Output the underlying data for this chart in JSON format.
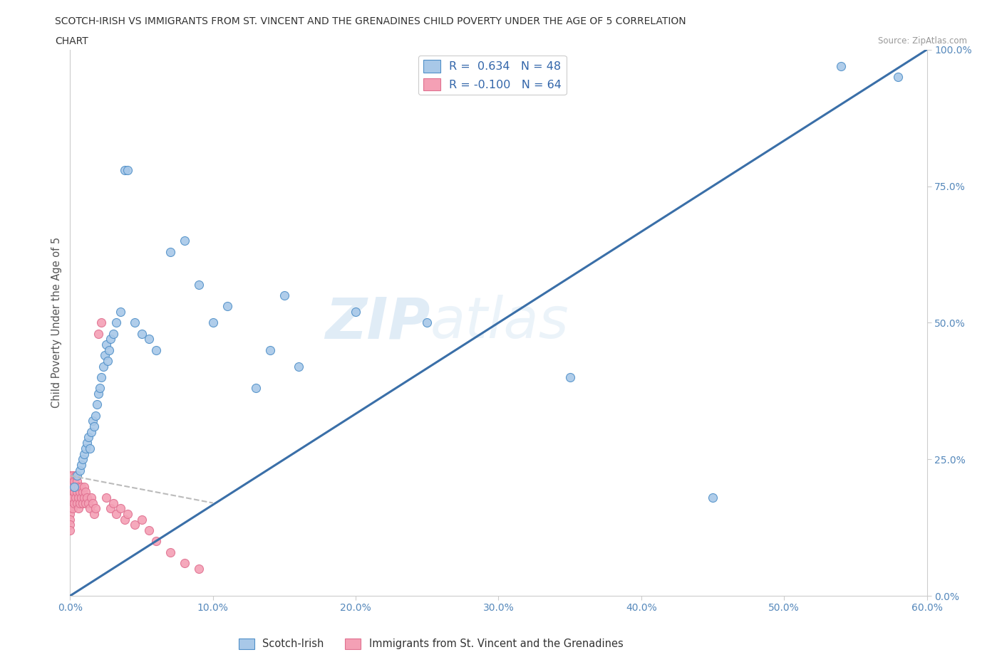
{
  "title_line1": "SCOTCH-IRISH VS IMMIGRANTS FROM ST. VINCENT AND THE GRENADINES CHILD POVERTY UNDER THE AGE OF 5 CORRELATION",
  "title_line2": "CHART",
  "source_text": "Source: ZipAtlas.com",
  "ylabel": "Child Poverty Under the Age of 5",
  "watermark_part1": "ZIP",
  "watermark_part2": "atlas",
  "legend_label1": "Scotch-Irish",
  "legend_label2": "Immigrants from St. Vincent and the Grenadines",
  "R1": 0.634,
  "N1": 48,
  "R2": -0.1,
  "N2": 64,
  "color_blue": "#a8c8e8",
  "color_pink": "#f4a0b5",
  "trend_color_blue": "#3a6fa8",
  "xlim": [
    0,
    0.6
  ],
  "ylim": [
    0,
    1.0
  ],
  "xticks": [
    0.0,
    0.1,
    0.2,
    0.3,
    0.4,
    0.5,
    0.6
  ],
  "xtick_labels": [
    "0.0%",
    "10.0%",
    "20.0%",
    "30.0%",
    "40.0%",
    "50.0%",
    "60.0%"
  ],
  "ytick_labels": [
    "0.0%",
    "25.0%",
    "50.0%",
    "75.0%",
    "100.0%"
  ],
  "yticks": [
    0.0,
    0.25,
    0.5,
    0.75,
    1.0
  ],
  "blue_x": [
    0.003,
    0.005,
    0.007,
    0.008,
    0.009,
    0.01,
    0.011,
    0.012,
    0.013,
    0.014,
    0.015,
    0.016,
    0.017,
    0.018,
    0.019,
    0.02,
    0.021,
    0.022,
    0.023,
    0.024,
    0.025,
    0.026,
    0.027,
    0.028,
    0.03,
    0.032,
    0.035,
    0.038,
    0.04,
    0.045,
    0.05,
    0.055,
    0.06,
    0.07,
    0.08,
    0.09,
    0.1,
    0.11,
    0.13,
    0.14,
    0.15,
    0.16,
    0.2,
    0.25,
    0.35,
    0.45,
    0.54,
    0.58
  ],
  "blue_y": [
    0.2,
    0.22,
    0.23,
    0.24,
    0.25,
    0.26,
    0.27,
    0.28,
    0.29,
    0.27,
    0.3,
    0.32,
    0.31,
    0.33,
    0.35,
    0.37,
    0.38,
    0.4,
    0.42,
    0.44,
    0.46,
    0.43,
    0.45,
    0.47,
    0.48,
    0.5,
    0.52,
    0.78,
    0.78,
    0.5,
    0.48,
    0.47,
    0.45,
    0.63,
    0.65,
    0.57,
    0.5,
    0.53,
    0.38,
    0.45,
    0.55,
    0.42,
    0.52,
    0.5,
    0.4,
    0.18,
    0.97,
    0.95
  ],
  "pink_x": [
    0.0,
    0.0,
    0.0,
    0.0,
    0.0,
    0.0,
    0.0,
    0.0,
    0.0,
    0.0,
    0.001,
    0.001,
    0.001,
    0.001,
    0.001,
    0.002,
    0.002,
    0.002,
    0.002,
    0.003,
    0.003,
    0.003,
    0.004,
    0.004,
    0.004,
    0.005,
    0.005,
    0.005,
    0.006,
    0.006,
    0.006,
    0.007,
    0.007,
    0.008,
    0.008,
    0.009,
    0.009,
    0.01,
    0.01,
    0.011,
    0.011,
    0.012,
    0.013,
    0.014,
    0.015,
    0.016,
    0.017,
    0.018,
    0.02,
    0.022,
    0.025,
    0.028,
    0.03,
    0.032,
    0.035,
    0.038,
    0.04,
    0.045,
    0.05,
    0.055,
    0.06,
    0.07,
    0.08,
    0.09
  ],
  "pink_y": [
    0.2,
    0.19,
    0.18,
    0.17,
    0.16,
    0.15,
    0.14,
    0.13,
    0.12,
    0.22,
    0.21,
    0.2,
    0.19,
    0.18,
    0.17,
    0.22,
    0.2,
    0.18,
    0.16,
    0.21,
    0.19,
    0.17,
    0.22,
    0.2,
    0.18,
    0.21,
    0.19,
    0.17,
    0.2,
    0.18,
    0.16,
    0.19,
    0.17,
    0.2,
    0.18,
    0.19,
    0.17,
    0.2,
    0.18,
    0.19,
    0.17,
    0.18,
    0.17,
    0.16,
    0.18,
    0.17,
    0.15,
    0.16,
    0.48,
    0.5,
    0.18,
    0.16,
    0.17,
    0.15,
    0.16,
    0.14,
    0.15,
    0.13,
    0.14,
    0.12,
    0.1,
    0.08,
    0.06,
    0.05
  ],
  "trend_blue_x0": 0.0,
  "trend_blue_y0": 0.0,
  "trend_blue_x1": 0.6,
  "trend_blue_y1": 1.0,
  "trend_pink_x0": 0.0,
  "trend_pink_y0": 0.22,
  "trend_pink_x1": 0.1,
  "trend_pink_y1": 0.17
}
